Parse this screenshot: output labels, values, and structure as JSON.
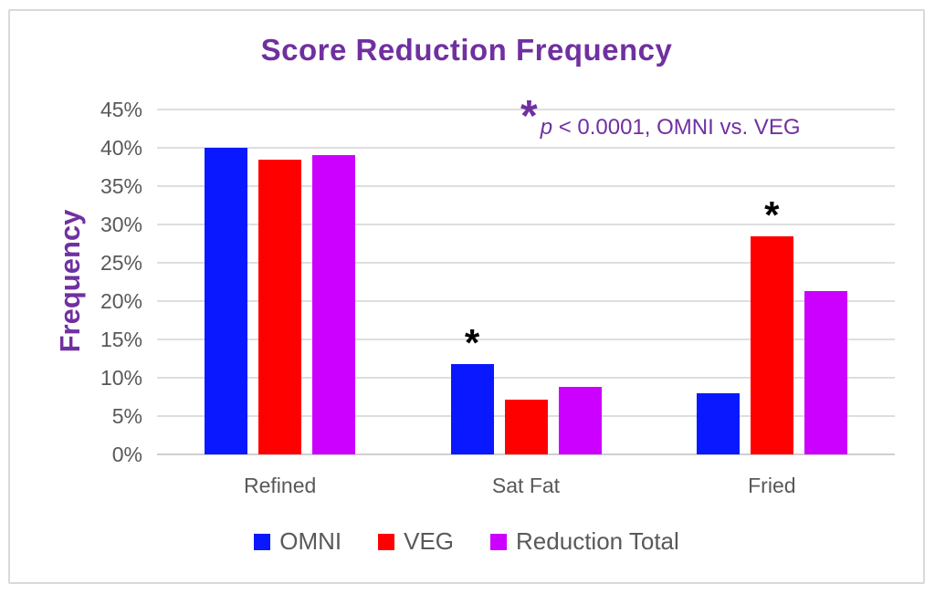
{
  "annotation": {
    "asterisk": "*",
    "p_italic": "p",
    "rest": " < 0.0001, OMNI vs. VEG"
  },
  "colors": {
    "title": "#7030a0",
    "axis_text": "#595959",
    "gridline": "#dedede",
    "marker": "#000000",
    "omni": "#0a18ff",
    "veg": "#fe0000",
    "reduction_total": "#cc00fe"
  },
  "chart_data": {
    "type": "bar",
    "title": "Score Reduction Frequency",
    "ylabel": "Frequency",
    "xlabel": "",
    "ylim": [
      0,
      45
    ],
    "ytick_step": 5,
    "ytick_suffix": "%",
    "grid": true,
    "legend_position": "bottom",
    "categories": [
      "Refined",
      "Sat Fat",
      "Fried"
    ],
    "series": [
      {
        "name": "OMNI",
        "color": "#0a18ff",
        "values": [
          40.0,
          11.8,
          8.0
        ]
      },
      {
        "name": "VEG",
        "color": "#fe0000",
        "values": [
          38.5,
          7.2,
          28.5
        ]
      },
      {
        "name": "Reduction Total",
        "color": "#cc00fe",
        "values": [
          39.0,
          8.8,
          21.3
        ]
      }
    ],
    "significance_markers": [
      {
        "category": "Sat Fat",
        "series": "OMNI",
        "symbol": "*"
      },
      {
        "category": "Fried",
        "series": "VEG",
        "symbol": "*"
      }
    ],
    "annotation_text": "*p < 0.0001, OMNI vs. VEG"
  }
}
